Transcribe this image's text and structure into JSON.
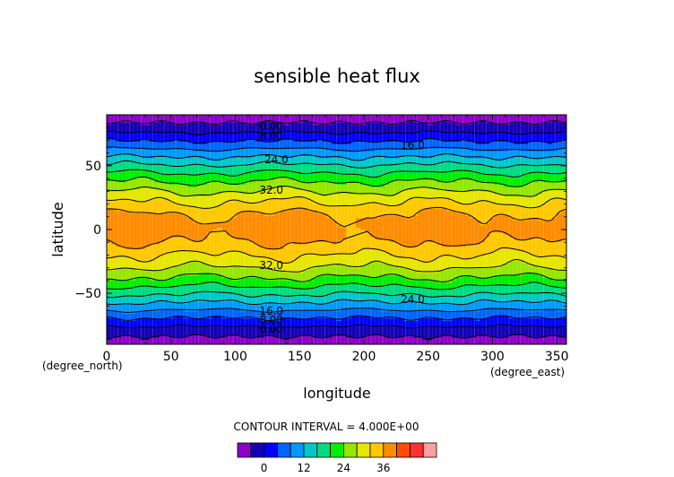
{
  "chart_data": {
    "type": "contour",
    "title": "sensible heat flux",
    "xlabel": "longitude",
    "ylabel": "latitude",
    "x_unit": "(degree_east)",
    "y_unit": "(degree_north)",
    "xlim": [
      0,
      357.5
    ],
    "ylim": [
      -90,
      90
    ],
    "x_ticks": [
      "0",
      "50",
      "100",
      "150",
      "200",
      "250",
      "300",
      "350"
    ],
    "y_ticks": [
      "50",
      "0",
      "−50"
    ],
    "x_tick_values": [
      0,
      50,
      100,
      150,
      200,
      250,
      300,
      350
    ],
    "y_tick_values": [
      50,
      0,
      -50
    ],
    "contour_interval_text": "CONTOUR INTERVAL = 4.000E+00",
    "levels": [
      -4,
      0,
      4,
      8,
      12,
      16,
      20,
      24,
      28,
      32,
      36
    ],
    "band_colors": [
      "#8c00c8",
      "#1400b4",
      "#0000ff",
      "#0064ff",
      "#0099ff",
      "#00c8c8",
      "#00dc7d",
      "#00ee00",
      "#96e600",
      "#e6e600",
      "#ffc800",
      "#ff8c00",
      "#ff4d00",
      "#ff3030",
      "#ffa0a0"
    ],
    "contour_labels": [
      {
        "text": "0.00",
        "lon": 128,
        "lat": 81
      },
      {
        "text": "8.00",
        "lon": 128,
        "lat": 73
      },
      {
        "text": "16.0",
        "lon": 238,
        "lat": 66
      },
      {
        "text": "24.0",
        "lon": 132,
        "lat": 55
      },
      {
        "text": "32.0",
        "lon": 128,
        "lat": 31
      },
      {
        "text": "32.0",
        "lon": 128,
        "lat": -28
      },
      {
        "text": "24.0",
        "lon": 238,
        "lat": -55
      },
      {
        "text": "16.0",
        "lon": 128,
        "lat": -64
      },
      {
        "text": "8.00",
        "lon": 128,
        "lat": -71
      },
      {
        "text": "0.00",
        "lon": 128,
        "lat": -78
      }
    ],
    "colorbar_ticks": [
      "0",
      "12",
      "24",
      "36"
    ],
    "colorbar_tick_values": [
      0,
      12,
      24,
      36
    ]
  }
}
